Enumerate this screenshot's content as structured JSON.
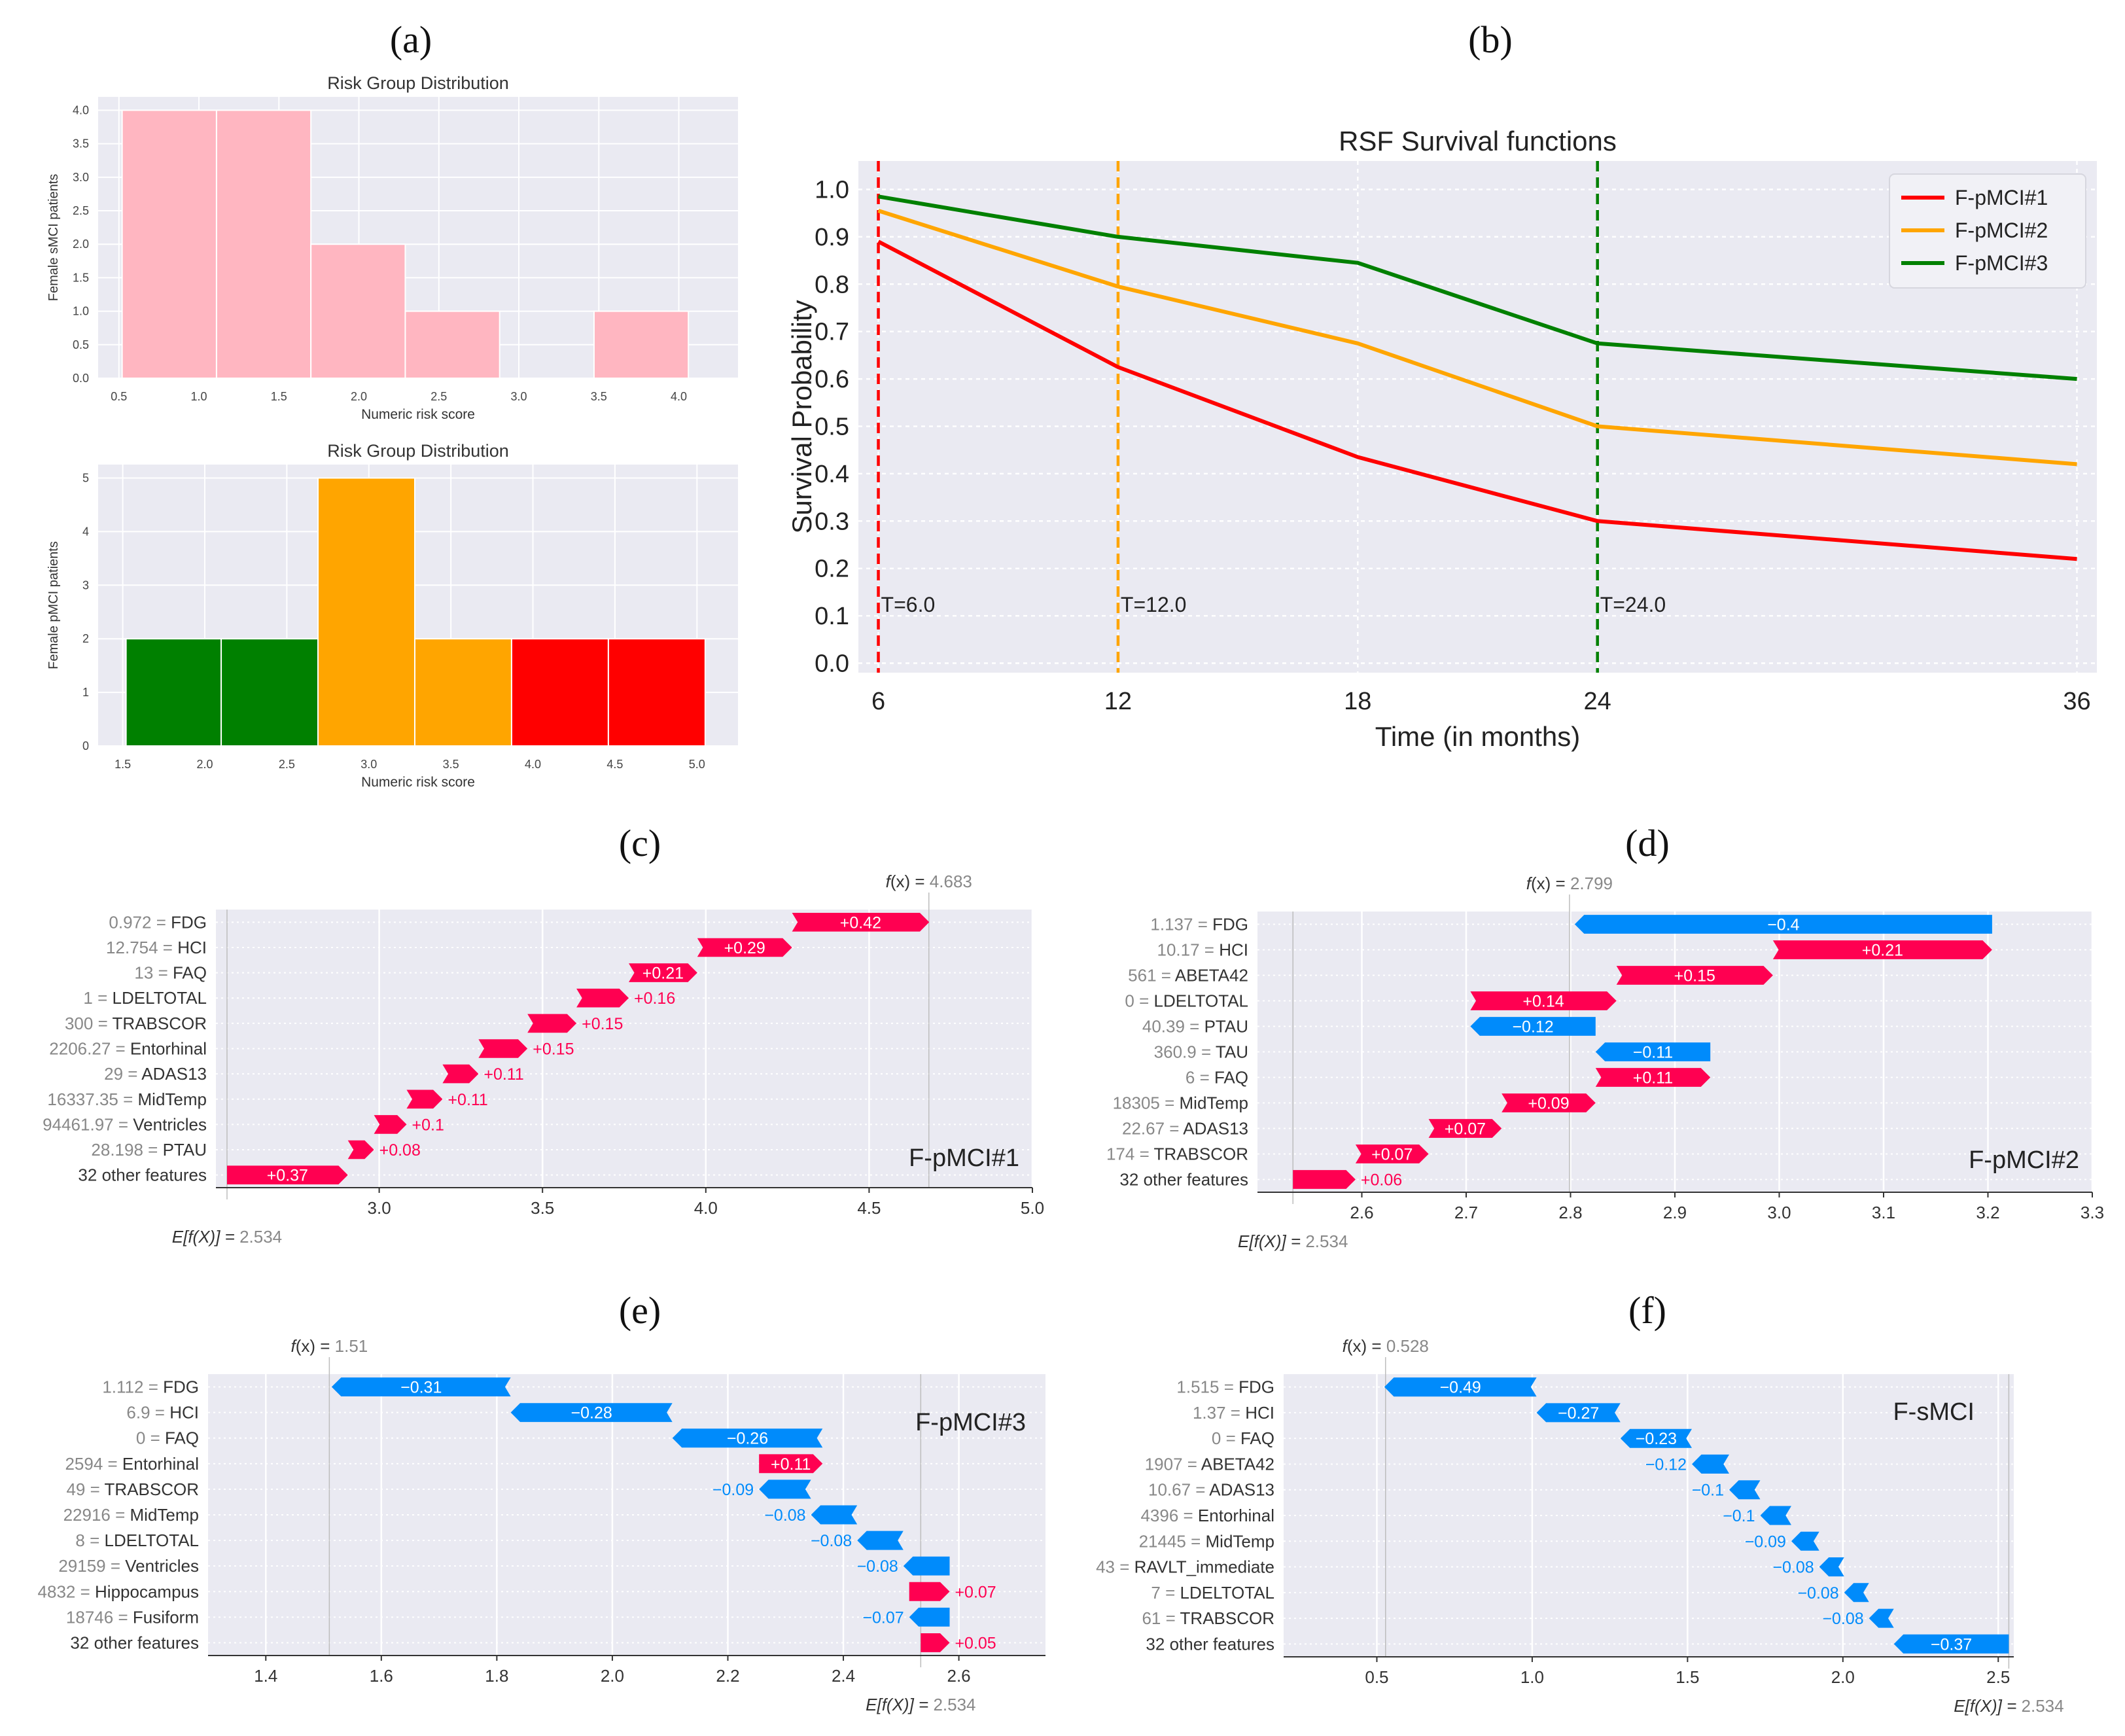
{
  "panel_labels": [
    "(a)",
    "(b)",
    "(c)",
    "(d)",
    "(e)",
    "(f)"
  ],
  "colors": {
    "bg": "#eaeaf2",
    "grid": "#ffffff",
    "pink": "#ffb6c1",
    "green": "#008000",
    "orange": "#ffa500",
    "red": "#ff0000",
    "shap_pos": "#ff0051",
    "shap_neg": "#008bfb",
    "text": "#333333",
    "muted": "#888888"
  },
  "chart_data": [
    {
      "id": "a1",
      "type": "bar",
      "title": "Risk Group Distribution",
      "xlabel": "Numeric risk score",
      "ylabel": "Female sMCI patients",
      "xlim": [
        0.37,
        4.37
      ],
      "ylim": [
        0,
        4.2
      ],
      "xticks": [
        0.5,
        1.0,
        1.5,
        2.0,
        2.5,
        3.0,
        3.5,
        4.0
      ],
      "yticks": [
        0.0,
        0.5,
        1.0,
        1.5,
        2.0,
        2.5,
        3.0,
        3.5,
        4.0
      ],
      "bins": [
        {
          "x0": 0.52,
          "x1": 1.11,
          "value": 4,
          "color": "pink"
        },
        {
          "x0": 1.11,
          "x1": 1.7,
          "value": 4,
          "color": "pink"
        },
        {
          "x0": 1.7,
          "x1": 2.29,
          "value": 2,
          "color": "pink"
        },
        {
          "x0": 2.29,
          "x1": 2.88,
          "value": 1,
          "color": "pink"
        },
        {
          "x0": 2.88,
          "x1": 3.47,
          "value": 0,
          "color": "pink"
        },
        {
          "x0": 3.47,
          "x1": 4.06,
          "value": 1,
          "color": "pink"
        }
      ]
    },
    {
      "id": "a2",
      "type": "bar",
      "title": "Risk Group Distribution",
      "xlabel": "Numeric risk score",
      "ylabel": "Female pMCI patients",
      "xlim": [
        1.35,
        5.25
      ],
      "ylim": [
        0,
        5.25
      ],
      "xticks": [
        1.5,
        2.0,
        2.5,
        3.0,
        3.5,
        4.0,
        4.5,
        5.0
      ],
      "yticks": [
        0,
        1,
        2,
        3,
        4,
        5
      ],
      "bins": [
        {
          "x0": 1.52,
          "x1": 2.1,
          "value": 2,
          "color": "green"
        },
        {
          "x0": 2.1,
          "x1": 2.69,
          "value": 2,
          "color": "green"
        },
        {
          "x0": 2.69,
          "x1": 3.28,
          "value": 5,
          "color": "orange"
        },
        {
          "x0": 3.28,
          "x1": 3.87,
          "value": 2,
          "color": "orange"
        },
        {
          "x0": 3.87,
          "x1": 4.46,
          "value": 2,
          "color": "red"
        },
        {
          "x0": 4.46,
          "x1": 5.05,
          "value": 2,
          "color": "red"
        }
      ]
    },
    {
      "id": "b",
      "type": "line",
      "title": "RSF Survival functions",
      "xlabel": "Time (in months)",
      "ylabel": "Survival Probability",
      "xlim": [
        5.5,
        36.5
      ],
      "ylim": [
        -0.02,
        1.06
      ],
      "xticks": [
        6,
        12,
        18,
        24,
        36
      ],
      "yticks": [
        0.0,
        0.1,
        0.2,
        0.3,
        0.4,
        0.5,
        0.6,
        0.7,
        0.8,
        0.9,
        1.0
      ],
      "x": [
        6,
        12,
        18,
        24,
        36
      ],
      "series": [
        {
          "name": "F-pMCI#1",
          "color": "red",
          "values": [
            0.89,
            0.625,
            0.435,
            0.3,
            0.22
          ]
        },
        {
          "name": "F-pMCI#2",
          "color": "orange",
          "values": [
            0.955,
            0.795,
            0.675,
            0.5,
            0.42
          ]
        },
        {
          "name": "F-pMCI#3",
          "color": "green",
          "values": [
            0.985,
            0.9,
            0.845,
            0.675,
            0.6
          ]
        }
      ],
      "vlines": [
        {
          "x": 6,
          "label": "T=6.0",
          "color": "red"
        },
        {
          "x": 12,
          "label": "T=12.0",
          "color": "orange"
        },
        {
          "x": 24,
          "label": "T=24.0",
          "color": "green"
        }
      ],
      "legend": "top-right"
    },
    {
      "id": "c",
      "type": "waterfall",
      "name": "F-pMCI#1",
      "base": 2.534,
      "fx": 4.683,
      "base_label": "2.534",
      "fx_label": "4.683",
      "xlim": [
        2.5,
        5.0
      ],
      "xticks": [
        3.0,
        3.5,
        4.0,
        4.5,
        5.0
      ],
      "features": [
        {
          "label": "FDG",
          "value_text": "0.972",
          "shap": 0.42,
          "text": "+0.42"
        },
        {
          "label": "HCI",
          "value_text": "12.754",
          "shap": 0.29,
          "text": "+0.29"
        },
        {
          "label": "FAQ",
          "value_text": "13",
          "shap": 0.21,
          "text": "+0.21"
        },
        {
          "label": "LDELTOTAL",
          "value_text": "1",
          "shap": 0.16,
          "text": "+0.16"
        },
        {
          "label": "TRABSCOR",
          "value_text": "300",
          "shap": 0.15,
          "text": "+0.15"
        },
        {
          "label": "Entorhinal",
          "value_text": "2206.27",
          "shap": 0.15,
          "text": "+0.15"
        },
        {
          "label": "ADAS13",
          "value_text": "29",
          "shap": 0.11,
          "text": "+0.11"
        },
        {
          "label": "MidTemp",
          "value_text": "16337.35",
          "shap": 0.11,
          "text": "+0.11"
        },
        {
          "label": "Ventricles",
          "value_text": "94461.97",
          "shap": 0.1,
          "text": "+0.1"
        },
        {
          "label": "PTAU",
          "value_text": "28.198",
          "shap": 0.08,
          "text": "+0.08"
        },
        {
          "label": "32 other features",
          "value_text": "",
          "shap": 0.37,
          "text": "+0.37"
        }
      ]
    },
    {
      "id": "d",
      "type": "waterfall",
      "name": "F-pMCI#2",
      "base": 2.534,
      "fx": 2.799,
      "base_label": "2.534",
      "fx_label": "2.799",
      "xlim": [
        2.5,
        3.3
      ],
      "xticks": [
        2.6,
        2.7,
        2.8,
        2.9,
        3.0,
        3.1,
        3.2,
        3.3
      ],
      "features": [
        {
          "label": "FDG",
          "value_text": "1.137",
          "shap": -0.4,
          "text": "−0.4"
        },
        {
          "label": "HCI",
          "value_text": "10.17",
          "shap": 0.21,
          "text": "+0.21"
        },
        {
          "label": "ABETA42",
          "value_text": "561",
          "shap": 0.15,
          "text": "+0.15"
        },
        {
          "label": "LDELTOTAL",
          "value_text": "0",
          "shap": 0.14,
          "text": "+0.14"
        },
        {
          "label": "PTAU",
          "value_text": "40.39",
          "shap": -0.12,
          "text": "−0.12"
        },
        {
          "label": "TAU",
          "value_text": "360.9",
          "shap": -0.11,
          "text": "−0.11"
        },
        {
          "label": "FAQ",
          "value_text": "6",
          "shap": 0.11,
          "text": "+0.11"
        },
        {
          "label": "MidTemp",
          "value_text": "18305",
          "shap": 0.09,
          "text": "+0.09"
        },
        {
          "label": "ADAS13",
          "value_text": "22.67",
          "shap": 0.07,
          "text": "+0.07"
        },
        {
          "label": "TRABSCOR",
          "value_text": "174",
          "shap": 0.07,
          "text": "+0.07"
        },
        {
          "label": "32 other features",
          "value_text": "",
          "shap": 0.06,
          "text": "+0.06"
        }
      ]
    },
    {
      "id": "e",
      "type": "waterfall",
      "name": "F-pMCI#3",
      "base": 2.534,
      "fx": 1.51,
      "base_label": "2.534",
      "fx_label": "1.51",
      "xlim": [
        1.3,
        2.75
      ],
      "xticks": [
        1.4,
        1.6,
        1.8,
        2.0,
        2.2,
        2.4,
        2.6
      ],
      "features": [
        {
          "label": "FDG",
          "value_text": "1.112",
          "shap": -0.31,
          "text": "−0.31"
        },
        {
          "label": "HCI",
          "value_text": "6.9",
          "shap": -0.28,
          "text": "−0.28"
        },
        {
          "label": "FAQ",
          "value_text": "0",
          "shap": -0.26,
          "text": "−0.26"
        },
        {
          "label": "Entorhinal",
          "value_text": "2594",
          "shap": 0.11,
          "text": "+0.11"
        },
        {
          "label": "TRABSCOR",
          "value_text": "49",
          "shap": -0.09,
          "text": "−0.09"
        },
        {
          "label": "MidTemp",
          "value_text": "22916",
          "shap": -0.08,
          "text": "−0.08"
        },
        {
          "label": "LDELTOTAL",
          "value_text": "8",
          "shap": -0.08,
          "text": "−0.08"
        },
        {
          "label": "Ventricles",
          "value_text": "29159",
          "shap": -0.08,
          "text": "−0.08"
        },
        {
          "label": "Hippocampus",
          "value_text": "4832",
          "shap": 0.07,
          "text": "+0.07"
        },
        {
          "label": "Fusiform",
          "value_text": "18746",
          "shap": -0.07,
          "text": "−0.07"
        },
        {
          "label": "32 other features",
          "value_text": "",
          "shap": 0.05,
          "text": "+0.05"
        }
      ]
    },
    {
      "id": "f",
      "type": "waterfall",
      "name": "F-sMCI",
      "base": 2.534,
      "fx": 0.528,
      "base_label": "2.534",
      "fx_label": "0.528",
      "xlim": [
        0.2,
        2.55
      ],
      "xticks": [
        0.5,
        1.0,
        1.5,
        2.0,
        2.5
      ],
      "features": [
        {
          "label": "FDG",
          "value_text": "1.515",
          "shap": -0.49,
          "text": "−0.49"
        },
        {
          "label": "HCI",
          "value_text": "1.37",
          "shap": -0.27,
          "text": "−0.27"
        },
        {
          "label": "FAQ",
          "value_text": "0",
          "shap": -0.23,
          "text": "−0.23"
        },
        {
          "label": "ABETA42",
          "value_text": "1907",
          "shap": -0.12,
          "text": "−0.12"
        },
        {
          "label": "ADAS13",
          "value_text": "10.67",
          "shap": -0.1,
          "text": "−0.1"
        },
        {
          "label": "Entorhinal",
          "value_text": "4396",
          "shap": -0.1,
          "text": "−0.1"
        },
        {
          "label": "MidTemp",
          "value_text": "21445",
          "shap": -0.09,
          "text": "−0.09"
        },
        {
          "label": "RAVLT_immediate",
          "value_text": "43",
          "shap": -0.08,
          "text": "−0.08"
        },
        {
          "label": "LDELTOTAL",
          "value_text": "7",
          "shap": -0.08,
          "text": "−0.08"
        },
        {
          "label": "TRABSCOR",
          "value_text": "61",
          "shap": -0.08,
          "text": "−0.08"
        },
        {
          "label": "32 other features",
          "value_text": "",
          "shap": -0.37,
          "text": "−0.37"
        }
      ]
    }
  ]
}
